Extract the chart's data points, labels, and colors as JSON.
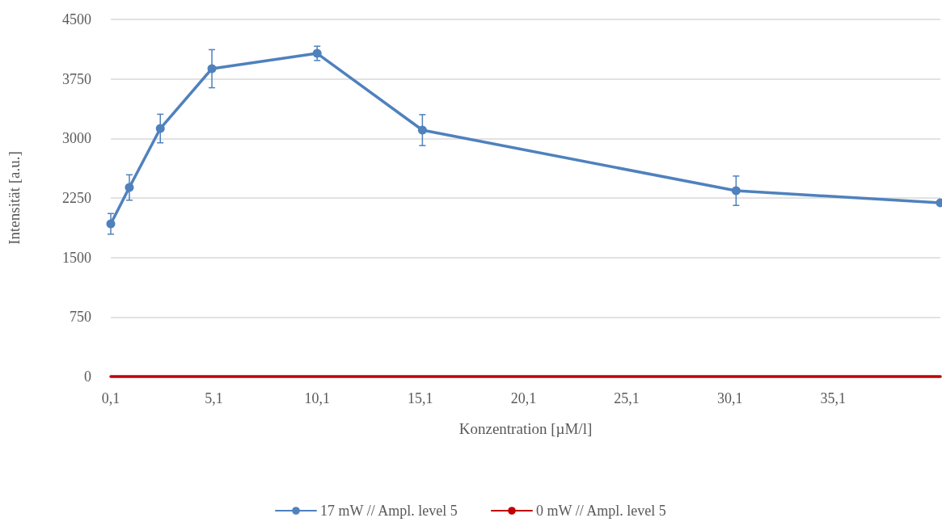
{
  "chart_data": {
    "type": "line",
    "xlabel": "Konzentration [µM/l]",
    "ylabel": "Intensität [a.u.]",
    "xlim": [
      0.1,
      40.3
    ],
    "xticks": [
      {
        "value": 0.1,
        "label": "0,1"
      },
      {
        "value": 5.1,
        "label": "5,1"
      },
      {
        "value": 10.1,
        "label": "10,1"
      },
      {
        "value": 15.1,
        "label": "15,1"
      },
      {
        "value": 20.1,
        "label": "20,1"
      },
      {
        "value": 25.1,
        "label": "25,1"
      },
      {
        "value": 30.1,
        "label": "30,1"
      },
      {
        "value": 35.1,
        "label": "35,1"
      }
    ],
    "ylim": [
      0,
      4500
    ],
    "yticks": [
      0,
      750,
      1500,
      2250,
      3000,
      3750,
      4500
    ],
    "grid": "y",
    "legend": "bottom",
    "series": [
      {
        "name": "17 mW // Ampl. level 5",
        "color": "#4f81bd",
        "marker": "circle",
        "x": [
          0.1,
          1.0,
          2.5,
          5.0,
          10.1,
          15.2,
          30.4,
          40.3
        ],
        "values": [
          1924,
          2382,
          3125,
          3879,
          4072,
          3105,
          2341,
          2189
        ],
        "errors": [
          130,
          160,
          180,
          240,
          90,
          195,
          185,
          null
        ]
      },
      {
        "name": "0 mW // Ampl. level 5",
        "color": "#c00000",
        "marker": "none",
        "x": [
          0.1,
          40.3
        ],
        "values": [
          0,
          0
        ]
      }
    ]
  }
}
